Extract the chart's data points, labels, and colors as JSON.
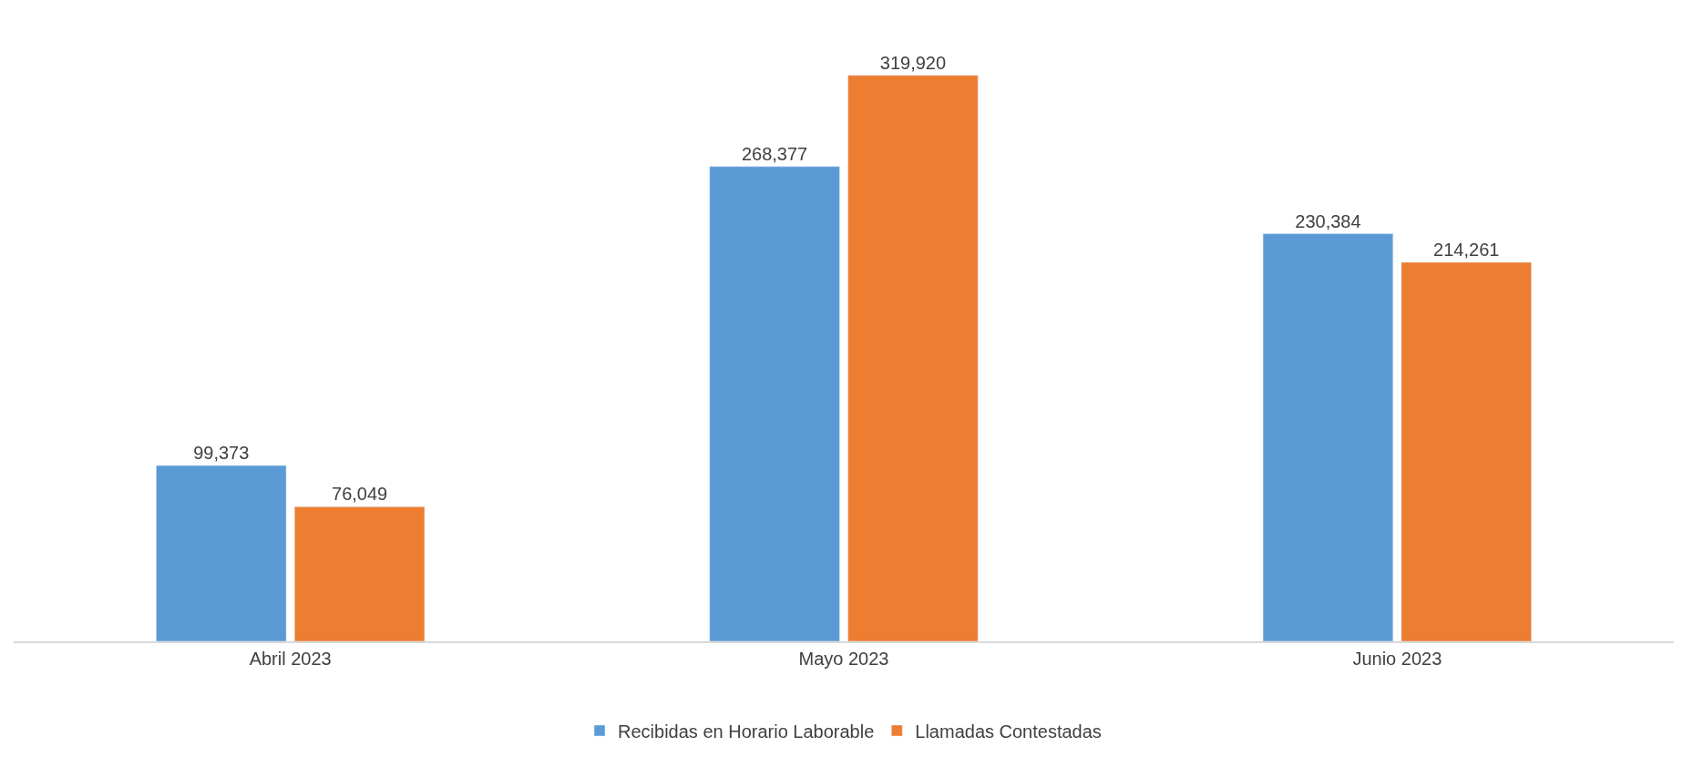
{
  "chart_data": {
    "type": "bar",
    "categories": [
      "Abril 2023",
      "Mayo 2023",
      "Junio 2023"
    ],
    "series": [
      {
        "name": "Recibidas en Horario Laborable",
        "color": "#5b9bd5",
        "values": [
          99373,
          268377,
          230384
        ],
        "value_labels": [
          "99,373",
          "268,377",
          "230,384"
        ]
      },
      {
        "name": "Llamadas Contestadas",
        "color": "#ed7d31",
        "values": [
          76049,
          319920,
          214261
        ],
        "value_labels": [
          "76,049",
          "319,920",
          "214,261"
        ]
      }
    ],
    "legend": "bottom",
    "tick_labels": "x"
  }
}
